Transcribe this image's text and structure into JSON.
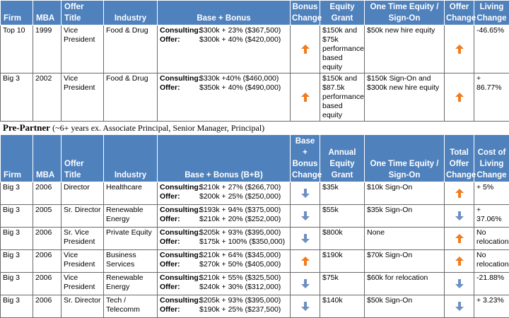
{
  "colors": {
    "header_bg": "#4f81bd",
    "up_arrow": "#f07c1e",
    "down_arrow": "#6e8fc2"
  },
  "table1": {
    "headers": {
      "firm": "Firm",
      "mba": "MBA",
      "title": "Offer Title",
      "industry": "Industry",
      "bonus": "Base + Bonus",
      "bonus_change": "Bonus Change",
      "equity": "Equity Grant",
      "onetime": "One Time Equity / Sign-On",
      "offer_change": "Offer Change",
      "living": "Living Change"
    },
    "rows": [
      {
        "firm": "Top 10",
        "mba": "1999",
        "title": "Vice President",
        "industry": "Food & Drug",
        "consulting": "$300k + 23% ($367,500)",
        "offer": "$300k + 40%  ($420,000)",
        "bonus_change": "up",
        "equity": "$150k and $75k performance based equity",
        "onetime": "$50k new hire equity",
        "offer_change": "up",
        "living": "-46.65%"
      },
      {
        "firm": "Big 3",
        "mba": "2002",
        "title": "Vice President",
        "industry": "Food & Drug",
        "consulting": "$330k +40% ($460,000)",
        "offer": "$350k + 40%  ($490,000)",
        "bonus_change": "up",
        "equity": "$150k and $87.5k performance based equity",
        "onetime": "$150k Sign-On and $300k new hire equity",
        "offer_change": "up",
        "living": "+ 86.77%"
      }
    ]
  },
  "section": {
    "title": "Pre-Partner",
    "note": "(~6+ years ex. Associate Principal, Senior Manager, Principal)"
  },
  "table2": {
    "headers": {
      "firm": "Firm",
      "mba": "MBA",
      "title": "Offer Title",
      "industry": "Industry",
      "bonus": "Base + Bonus (B+B)",
      "bonus_change": "Base + Bonus Change",
      "equity": "Annual Equity Grant",
      "onetime": "One Time Equity / Sign-On",
      "offer_change": "Total Offer Change",
      "living": "Cost of Living Change"
    },
    "rows": [
      {
        "firm": "Big 3",
        "mba": "2006",
        "title": "Director",
        "industry": "Healthcare",
        "consulting": "$210k + 27%  ($266,700)",
        "offer": "$200k + 25%  ($250,000)",
        "bonus_change": "down",
        "equity": "$35k",
        "onetime": "$10k Sign-On",
        "offer_change": "up",
        "living": "+ 5%"
      },
      {
        "firm": "Big 3",
        "mba": "2005",
        "title": "Sr. Director",
        "industry": "Renewable Energy",
        "consulting": "$193k + 94% ($375,000)",
        "offer": "$210k + 20%  ($252,000)",
        "bonus_change": "down",
        "equity": "$55k",
        "onetime": "$35k Sign-On",
        "offer_change": "down",
        "living": "+ 37.06%"
      },
      {
        "firm": "Big 3",
        "mba": "2006",
        "title": "Sr. Vice President",
        "industry": "Private Equity",
        "consulting": "$205k + 93% ($395,000)",
        "offer": "$175k + 100%  ($350,000)",
        "bonus_change": "down",
        "equity": "$800k",
        "onetime": "None",
        "offer_change": "up",
        "living": "No relocation"
      },
      {
        "firm": "Big 3",
        "mba": "2006",
        "title": "Vice President",
        "industry": "Business Services",
        "consulting": "$210k + 64% ($345,000)",
        "offer": "$270k + 50%  ($405,000)",
        "bonus_change": "up",
        "equity": "$190k",
        "onetime": "$70k Sign-On",
        "offer_change": "up",
        "living": "No relocation"
      },
      {
        "firm": "Big 3",
        "mba": "2006",
        "title": "Vice President",
        "industry": "Renewable Energy",
        "consulting": "$210k + 55%  ($325,500)",
        "offer": "$240k + 30%  ($312,000)",
        "bonus_change": "down",
        "equity": "$75k",
        "onetime": "$60k for relocation",
        "offer_change": "down",
        "living": "-21.88%"
      },
      {
        "firm": "Big 3",
        "mba": "2006",
        "title": "Sr. Director",
        "industry": "Tech / Telecomm",
        "consulting": "$205k + 93% ($395,000)",
        "offer": "$190k + 25%  ($237,500)",
        "bonus_change": "down",
        "equity": "$140k",
        "onetime": "$50k Sign-On",
        "offer_change": "down",
        "living": "+ 3.23%"
      }
    ]
  },
  "labels": {
    "consulting": "Consulting:",
    "offer": "Offer:"
  }
}
